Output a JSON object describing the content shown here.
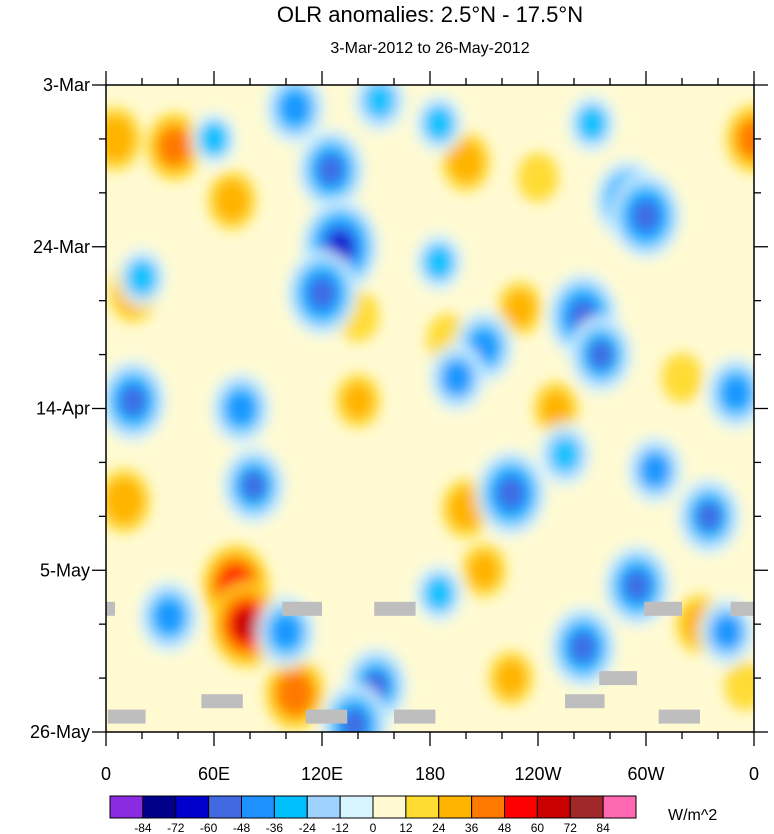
{
  "chart_data": {
    "type": "heatmap",
    "title": "OLR anomalies: 2.5°N - 17.5°N",
    "subtitle": "3-Mar-2012 to 26-May-2012",
    "x_tick_labels": [
      "0",
      "60E",
      "120E",
      "180",
      "120W",
      "60W",
      "0"
    ],
    "x_ticks_deg_east": [
      0,
      60,
      120,
      180,
      240,
      300,
      360
    ],
    "xlim": [
      0,
      360
    ],
    "y_tick_labels": [
      "3-Mar",
      "24-Mar",
      "14-Apr",
      "5-May",
      "26-May"
    ],
    "ylim": [
      "2012-03-03",
      "2012-05-26"
    ],
    "units": "W/m^2",
    "colorbar": {
      "levels": [
        -84,
        -72,
        -60,
        -48,
        -36,
        -24,
        -12,
        0,
        12,
        24,
        36,
        48,
        60,
        72,
        84
      ],
      "colors": [
        "#8a2be2",
        "#00008b",
        "#0000cd",
        "#4169e1",
        "#1e90ff",
        "#00bfff",
        "#a0d2ff",
        "#d7f5ff",
        "#fffad2",
        "#ffdc32",
        "#ffb400",
        "#ff7800",
        "#ff0000",
        "#c80000",
        "#a02828",
        "#ff69b4"
      ],
      "labels": [
        "-84",
        "-72",
        "-60",
        "-48",
        "-36",
        "-24",
        "-12",
        "0",
        "12",
        "24",
        "36",
        "48",
        "60",
        "72",
        "84"
      ]
    },
    "missing_color": "#bebebe",
    "blue_anomalies": [
      {
        "lon": 105,
        "date": "2012-03-06",
        "value": -45
      },
      {
        "lon": 125,
        "date": "2012-03-14",
        "value": -55
      },
      {
        "lon": 130,
        "date": "2012-03-24",
        "value": -70
      },
      {
        "lon": 120,
        "date": "2012-03-30",
        "value": -60
      },
      {
        "lon": 152,
        "date": "2012-03-05",
        "value": -35
      },
      {
        "lon": 185,
        "date": "2012-03-08",
        "value": -30
      },
      {
        "lon": 290,
        "date": "2012-03-18",
        "value": -55
      },
      {
        "lon": 300,
        "date": "2012-03-20",
        "value": -60
      },
      {
        "lon": 265,
        "date": "2012-04-02",
        "value": -60
      },
      {
        "lon": 275,
        "date": "2012-04-07",
        "value": -50
      },
      {
        "lon": 210,
        "date": "2012-04-06",
        "value": -45
      },
      {
        "lon": 195,
        "date": "2012-04-10",
        "value": -40
      },
      {
        "lon": 185,
        "date": "2012-03-26",
        "value": -30
      },
      {
        "lon": 350,
        "date": "2012-04-12",
        "value": -45
      },
      {
        "lon": 15,
        "date": "2012-04-13",
        "value": -55
      },
      {
        "lon": 75,
        "date": "2012-04-14",
        "value": -45
      },
      {
        "lon": 82,
        "date": "2012-04-24",
        "value": -50
      },
      {
        "lon": 225,
        "date": "2012-04-25",
        "value": -60
      },
      {
        "lon": 305,
        "date": "2012-04-22",
        "value": -40
      },
      {
        "lon": 255,
        "date": "2012-04-20",
        "value": -35
      },
      {
        "lon": 335,
        "date": "2012-04-28",
        "value": -50
      },
      {
        "lon": 35,
        "date": "2012-05-11",
        "value": -45
      },
      {
        "lon": 100,
        "date": "2012-05-13",
        "value": -45
      },
      {
        "lon": 150,
        "date": "2012-05-20",
        "value": -50
      },
      {
        "lon": 138,
        "date": "2012-05-25",
        "value": -55
      },
      {
        "lon": 265,
        "date": "2012-05-15",
        "value": -55
      },
      {
        "lon": 295,
        "date": "2012-05-07",
        "value": -55
      },
      {
        "lon": 345,
        "date": "2012-05-13",
        "value": -40
      },
      {
        "lon": 20,
        "date": "2012-03-28",
        "value": -30
      },
      {
        "lon": 185,
        "date": "2012-05-08",
        "value": -30
      },
      {
        "lon": 270,
        "date": "2012-03-08",
        "value": -30
      },
      {
        "lon": 60,
        "date": "2012-03-10",
        "value": -25
      }
    ],
    "warm_anomalies": [
      {
        "lon": 38,
        "date": "2012-03-11",
        "value": 40
      },
      {
        "lon": 5,
        "date": "2012-03-10",
        "value": 35
      },
      {
        "lon": 15,
        "date": "2012-03-30",
        "value": 30
      },
      {
        "lon": 70,
        "date": "2012-03-18",
        "value": 30
      },
      {
        "lon": 200,
        "date": "2012-03-13",
        "value": 30
      },
      {
        "lon": 240,
        "date": "2012-03-15",
        "value": 20
      },
      {
        "lon": 230,
        "date": "2012-04-01",
        "value": 25
      },
      {
        "lon": 190,
        "date": "2012-04-05",
        "value": 22
      },
      {
        "lon": 140,
        "date": "2012-04-02",
        "value": 22
      },
      {
        "lon": 140,
        "date": "2012-04-13",
        "value": 25
      },
      {
        "lon": 250,
        "date": "2012-04-14",
        "value": 25
      },
      {
        "lon": 10,
        "date": "2012-04-26",
        "value": 35
      },
      {
        "lon": 360,
        "date": "2012-03-10",
        "value": 40
      },
      {
        "lon": 72,
        "date": "2012-05-07",
        "value": 55
      },
      {
        "lon": 78,
        "date": "2012-05-12",
        "value": 60
      },
      {
        "lon": 200,
        "date": "2012-04-27",
        "value": 30
      },
      {
        "lon": 210,
        "date": "2012-05-05",
        "value": 25
      },
      {
        "lon": 330,
        "date": "2012-05-12",
        "value": 30
      },
      {
        "lon": 225,
        "date": "2012-05-19",
        "value": 25
      },
      {
        "lon": 355,
        "date": "2012-05-20",
        "value": 20
      },
      {
        "lon": 105,
        "date": "2012-05-21",
        "value": 45
      },
      {
        "lon": 320,
        "date": "2012-04-10",
        "value": 20
      }
    ],
    "missing_segments": [
      {
        "lon": [
          0,
          5
        ],
        "date": "2012-05-10"
      },
      {
        "lon": [
          98,
          120
        ],
        "date": "2012-05-10"
      },
      {
        "lon": [
          149,
          172
        ],
        "date": "2012-05-10"
      },
      {
        "lon": [
          299,
          320
        ],
        "date": "2012-05-10"
      },
      {
        "lon": [
          347,
          360
        ],
        "date": "2012-05-10"
      },
      {
        "lon": [
          274,
          295
        ],
        "date": "2012-05-19"
      },
      {
        "lon": [
          53,
          76
        ],
        "date": "2012-05-22"
      },
      {
        "lon": [
          255,
          277
        ],
        "date": "2012-05-22"
      },
      {
        "lon": [
          1,
          22
        ],
        "date": "2012-05-24"
      },
      {
        "lon": [
          111,
          134
        ],
        "date": "2012-05-24"
      },
      {
        "lon": [
          160,
          183
        ],
        "date": "2012-05-24"
      },
      {
        "lon": [
          307,
          330
        ],
        "date": "2012-05-24"
      }
    ]
  }
}
